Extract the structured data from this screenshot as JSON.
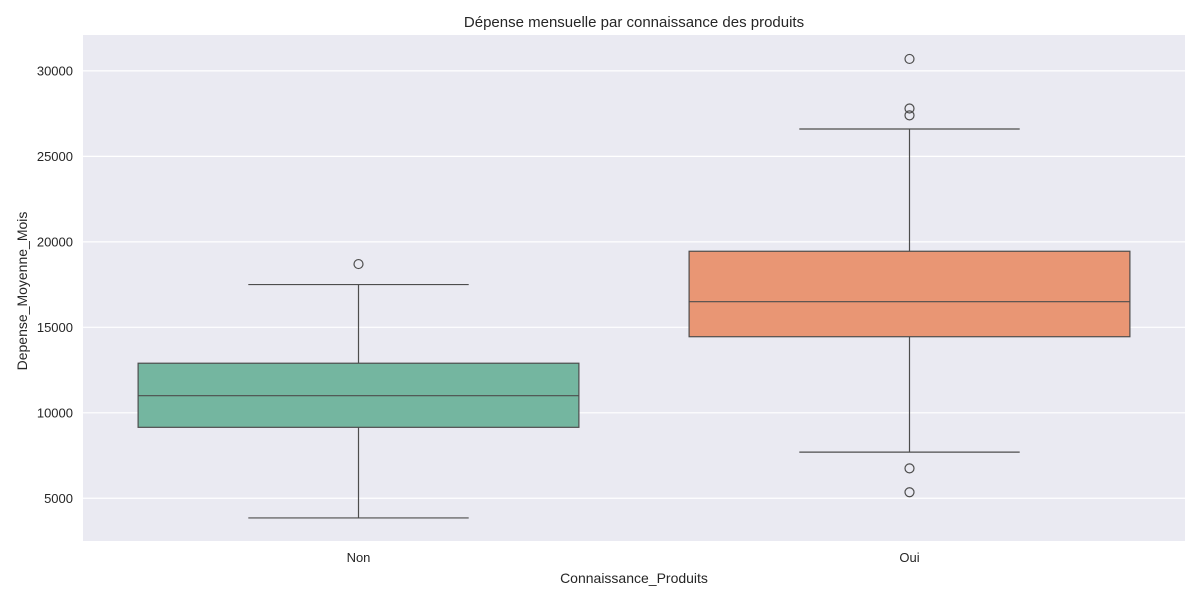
{
  "chart_data": {
    "type": "box",
    "title": "Dépense mensuelle par connaissance des produits",
    "xlabel": "Connaissance_Produits",
    "ylabel": "Depense_Moyenne_Mois",
    "ylim": [
      2500,
      32100
    ],
    "yticks": [
      5000,
      10000,
      15000,
      20000,
      25000,
      30000
    ],
    "grid": true,
    "categories": [
      "Non",
      "Oui"
    ],
    "boxes": [
      {
        "category": "Non",
        "whisker_low": 3850,
        "q1": 9150,
        "median": 11000,
        "q3": 12900,
        "whisker_high": 17500,
        "outliers": [
          18700
        ],
        "color": "#74b6a0"
      },
      {
        "category": "Oui",
        "whisker_low": 7700,
        "q1": 14450,
        "median": 16500,
        "q3": 19450,
        "whisker_high": 26600,
        "outliers": [
          30700,
          27800,
          27400,
          6750,
          5350
        ],
        "color": "#e99674"
      }
    ],
    "colors": {
      "plot_background": "#eaeaf2",
      "grid": "#ffffff",
      "line": "#4d4d4d"
    }
  }
}
